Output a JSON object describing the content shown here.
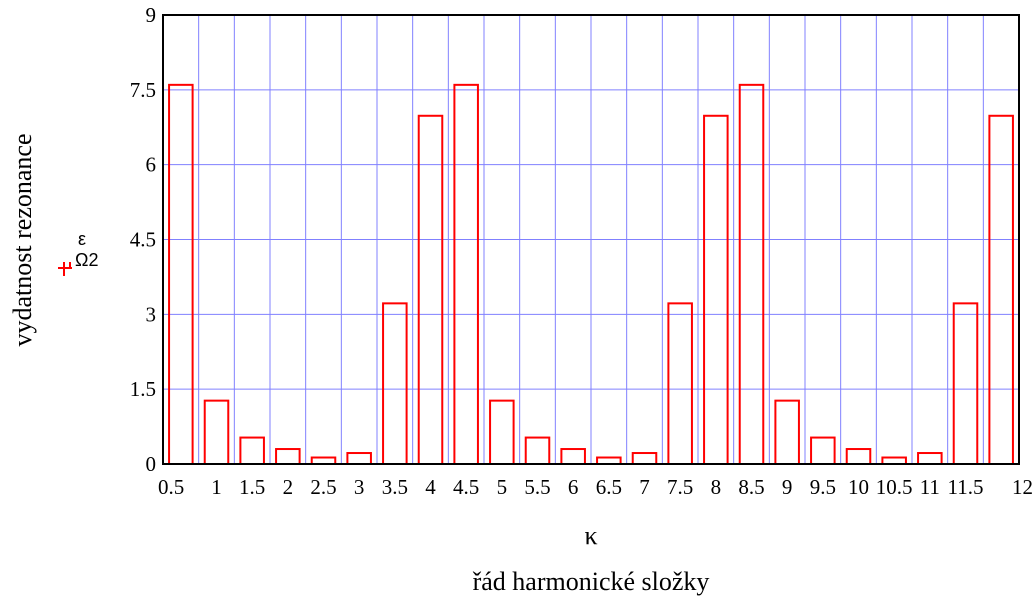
{
  "chart_data": {
    "type": "bar",
    "x": [
      0.5,
      1,
      1.5,
      2,
      2.5,
      3,
      3.5,
      4,
      4.5,
      5,
      5.5,
      6,
      6.5,
      7,
      7.5,
      8,
      8.5,
      9,
      9.5,
      10,
      10.5,
      11,
      11.5,
      12
    ],
    "series": [
      {
        "name": "εΩ2",
        "color": "#ff0000",
        "values": [
          7.6,
          1.27,
          0.53,
          0.3,
          0.13,
          0.22,
          3.22,
          6.98,
          7.6,
          1.27,
          0.53,
          0.3,
          0.13,
          0.22,
          3.22,
          6.98,
          7.6,
          1.27,
          0.53,
          0.3,
          0.13,
          0.22,
          3.22,
          6.98
        ]
      }
    ],
    "x_tick_labels": [
      "0.5",
      "1",
      "1.5",
      "2",
      "2.5",
      "3",
      "3.5",
      "4",
      "4.5",
      "5",
      "5.5",
      "6",
      "6.5",
      "7",
      "7.5",
      "8",
      "8.5",
      "9",
      "9.5",
      "10",
      "10.5",
      "11",
      "11.5",
      "12"
    ],
    "y_ticks": [
      0,
      1.5,
      3,
      4.5,
      6,
      7.5,
      9
    ],
    "y_tick_labels": [
      "0",
      "1.5",
      "3",
      "4.5",
      "6",
      "7.5",
      "9"
    ],
    "xlim": [
      0.5,
      12
    ],
    "ylim": [
      0,
      9
    ],
    "xlabel_symbol": "κ",
    "xlabel": "řád harmonické složky",
    "ylabel": "vydatnost rezonance",
    "ylabel_symbol_sup": "ε",
    "ylabel_symbol_sub": "Ω2",
    "grid": true,
    "grid_color": "#8080ff",
    "bar_color": "#ff0000",
    "axis_color": "#000000"
  }
}
